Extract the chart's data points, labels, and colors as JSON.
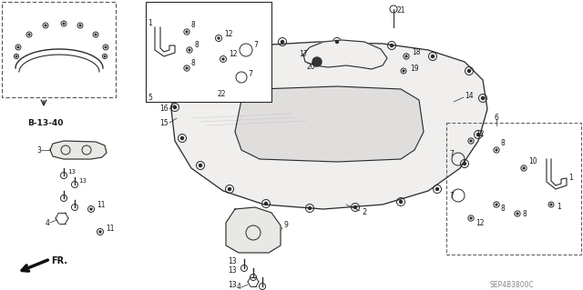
{
  "bg_color": "#ffffff",
  "fig_width": 6.4,
  "fig_height": 3.19,
  "watermark": "SEP4B3800C",
  "ref_label": "B-13-40",
  "line_color": "#2a2a2a",
  "text_color": "#1a1a1a",
  "dashed_color": "#555555"
}
